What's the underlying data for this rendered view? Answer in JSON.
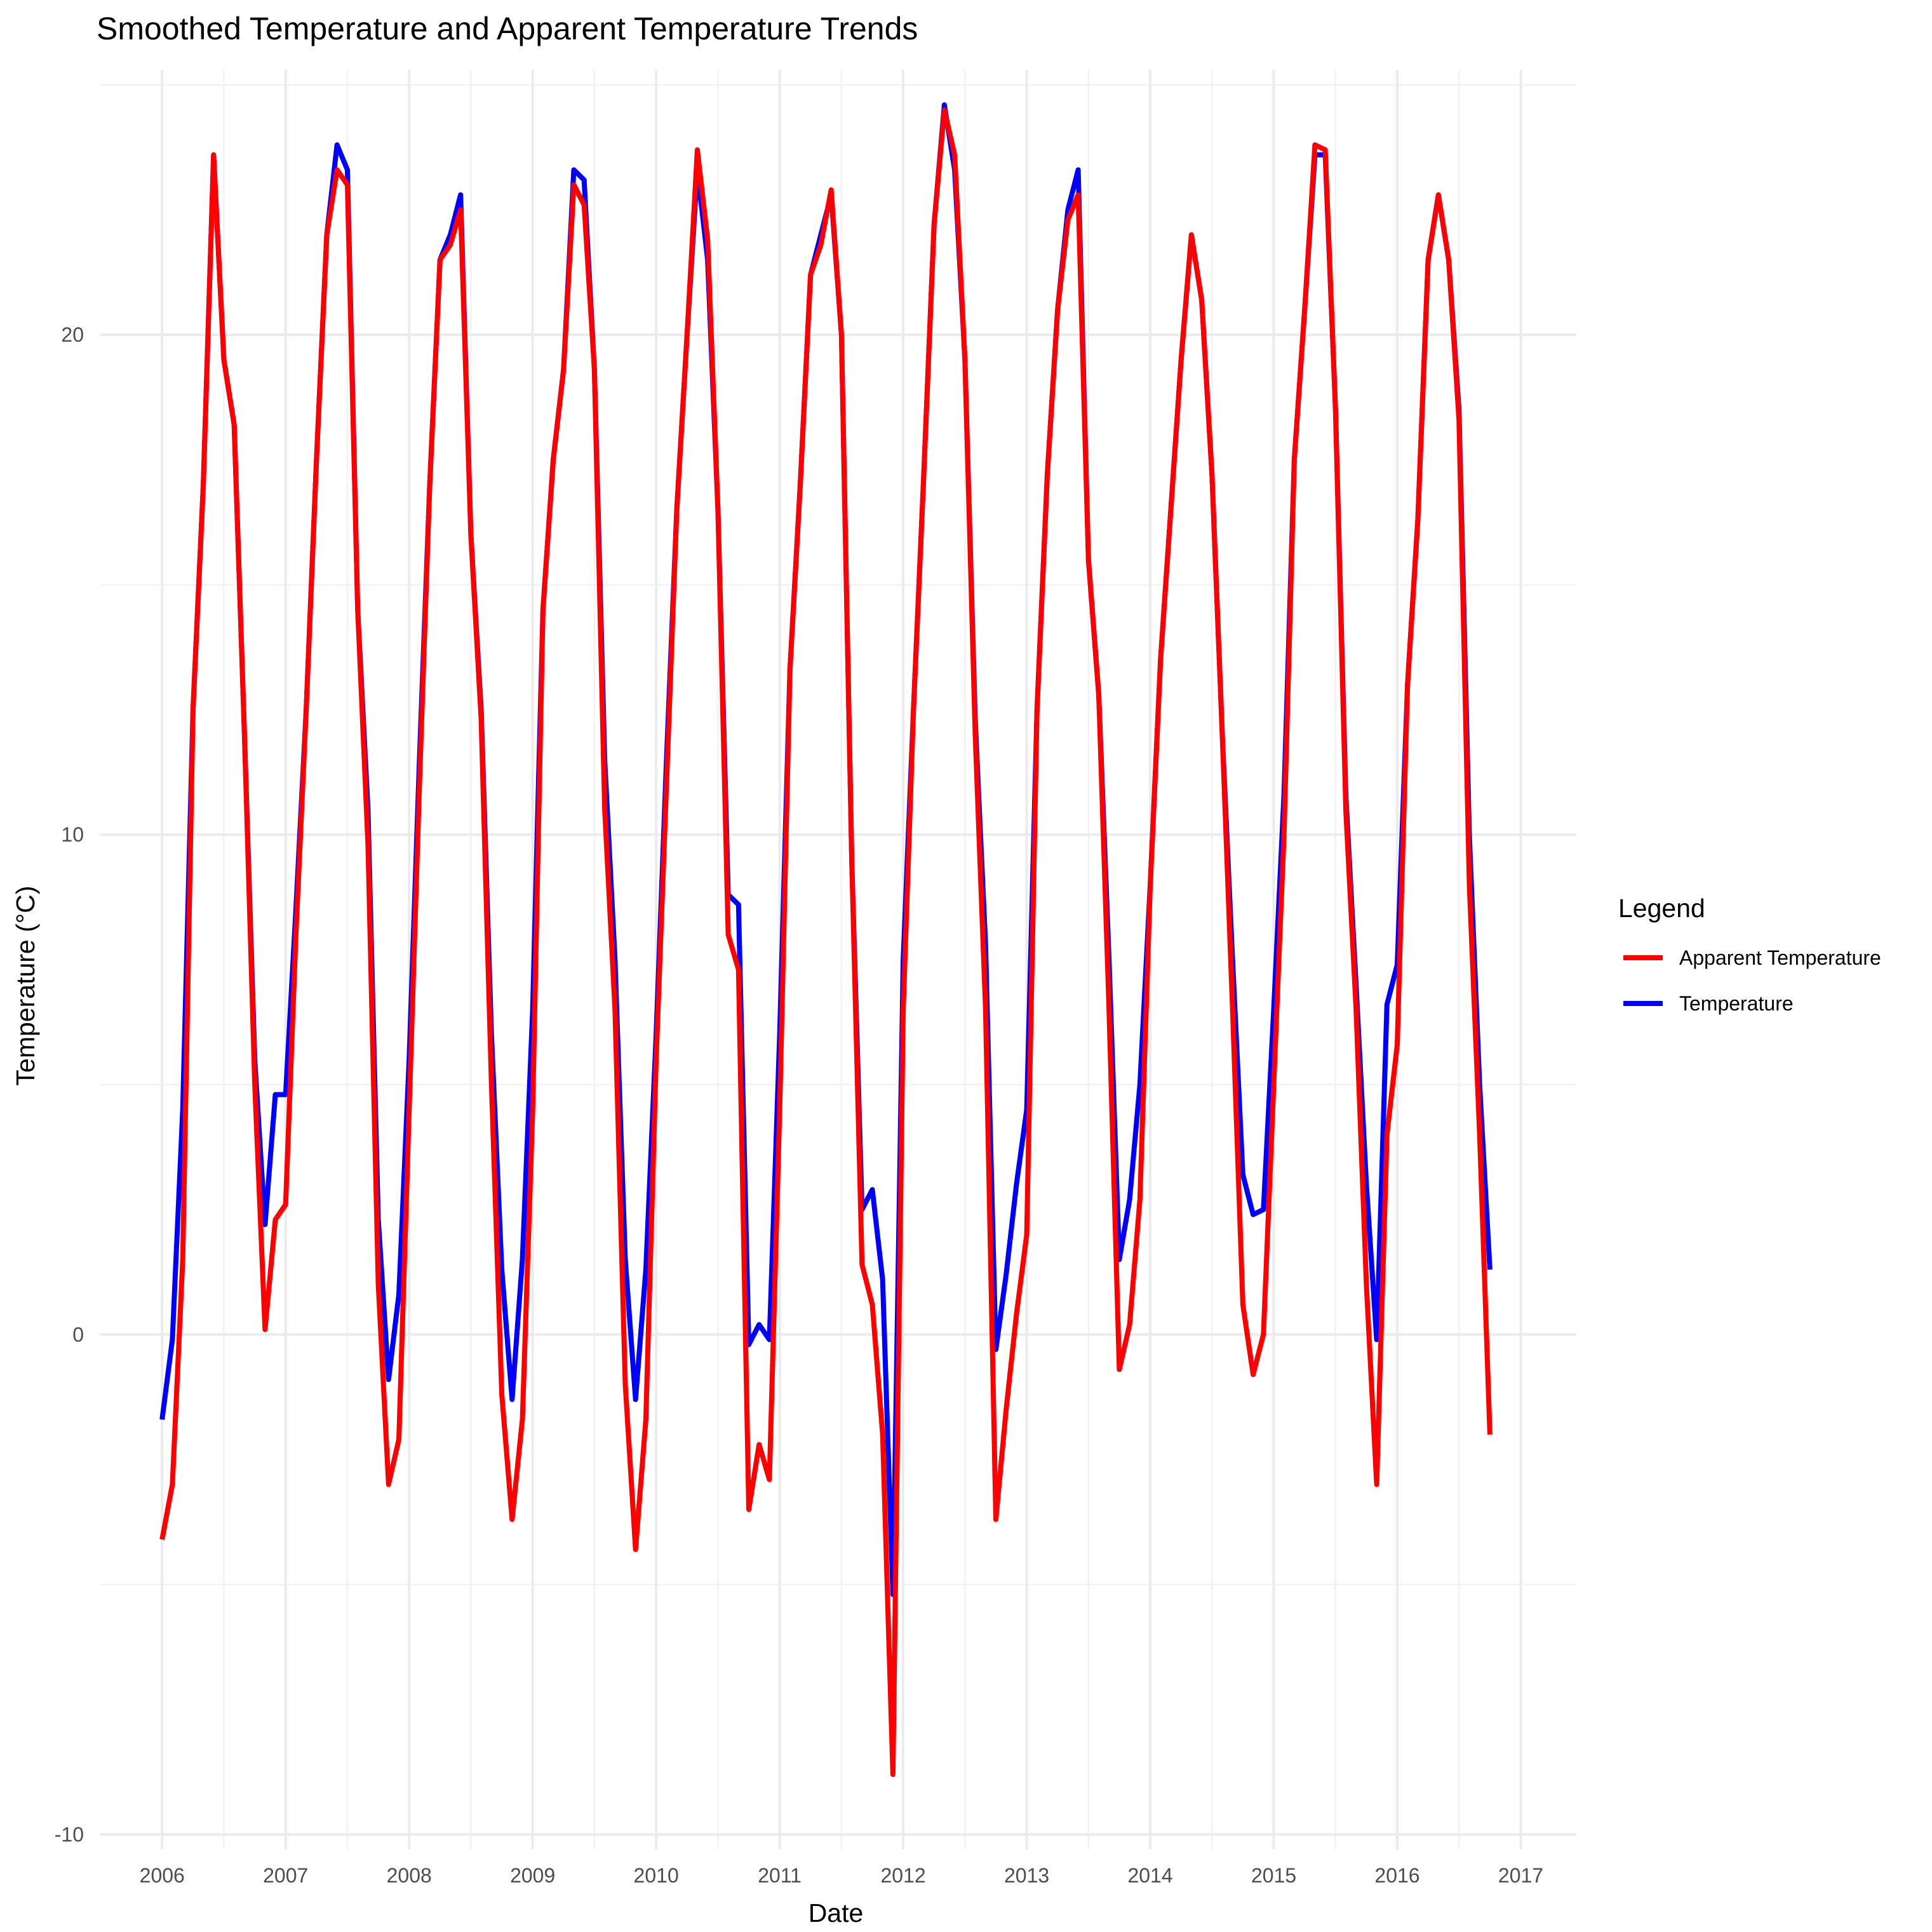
{
  "chart_data": {
    "type": "line",
    "title": "Smoothed Temperature and Apparent Temperature Trends",
    "xlabel": "Date",
    "ylabel": "Temperature (°C)",
    "xlim": [
      2005.5,
      2017.45
    ],
    "ylim": [
      -10.3,
      25.3
    ],
    "x_ticks": [
      2006,
      2007,
      2008,
      2009,
      2010,
      2011,
      2012,
      2013,
      2014,
      2015,
      2016,
      2017
    ],
    "x_tick_labels": [
      "2006",
      "2007",
      "2008",
      "2009",
      "2010",
      "2011",
      "2012",
      "2013",
      "2014",
      "2015",
      "2016",
      "2017"
    ],
    "y_ticks": [
      -10,
      0,
      10,
      20
    ],
    "y_tick_labels": [
      "-10",
      "0",
      "10",
      "20"
    ],
    "grid": true,
    "legend": {
      "title": "Legend",
      "position": "right"
    },
    "series": [
      {
        "name": "Apparent Temperature",
        "color": "#ff0000",
        "values": [
          -4.1,
          -3.0,
          1.5,
          12.5,
          17.0,
          23.6,
          19.5,
          18.2,
          12.0,
          5.0,
          0.1,
          2.3,
          2.6,
          8.0,
          12.5,
          17.5,
          22.0,
          23.3,
          23.0,
          14.5,
          9.8,
          1.0,
          -3.0,
          -2.1,
          4.5,
          11.0,
          17.0,
          21.5,
          21.8,
          22.5,
          16.0,
          12.3,
          5.0,
          -1.2,
          -3.7,
          -1.7,
          4.5,
          14.5,
          17.5,
          19.3,
          23.0,
          22.6,
          19.3,
          10.5,
          6.5,
          -1.0,
          -4.3,
          -1.7,
          5.5,
          11.0,
          16.5,
          20.0,
          23.7,
          21.9,
          16.5,
          8.0,
          7.3,
          -3.5,
          -2.2,
          -2.9,
          4.5,
          13.3,
          17.0,
          21.2,
          21.8,
          22.9,
          20.0,
          9.5,
          1.4,
          0.6,
          -2.0,
          -8.8,
          6.5,
          12.5,
          17.2,
          22.2,
          24.5,
          23.6,
          19.5,
          12.0,
          6.5,
          -3.7,
          -1.5,
          0.4,
          2.0,
          12.5,
          17.2,
          20.5,
          22.3,
          22.8,
          15.5,
          12.8,
          6.5,
          -0.7,
          0.2,
          2.7,
          9.0,
          13.5,
          16.5,
          19.5,
          22.0,
          20.7,
          17.2,
          12.0,
          6.5,
          0.6,
          -0.8,
          0.0,
          5.0,
          10.0,
          17.5,
          20.5,
          23.8,
          23.7,
          18.5,
          10.5,
          6.5,
          1.0,
          -3.0,
          4.0,
          5.8,
          13.0,
          16.3,
          21.5,
          22.8,
          21.5,
          18.3,
          9.0,
          4.0,
          -2.0
        ]
      },
      {
        "name": "Temperature",
        "color": "#0000ff",
        "values": [
          -1.7,
          -0.1,
          4.5,
          12.5,
          17.0,
          23.6,
          19.5,
          18.2,
          12.0,
          5.5,
          2.2,
          4.8,
          4.8,
          8.5,
          12.5,
          17.5,
          22.0,
          23.8,
          23.3,
          14.5,
          10.5,
          2.3,
          -0.9,
          0.8,
          5.5,
          11.5,
          17.0,
          21.5,
          22.0,
          22.8,
          16.0,
          12.5,
          6.0,
          1.3,
          -1.3,
          1.5,
          6.5,
          14.5,
          17.5,
          19.3,
          23.3,
          23.1,
          19.3,
          11.5,
          7.5,
          1.5,
          -1.3,
          1.3,
          6.0,
          11.5,
          16.5,
          20.0,
          23.3,
          21.5,
          16.5,
          8.8,
          8.6,
          -0.2,
          0.2,
          -0.1,
          6.0,
          13.3,
          17.0,
          21.2,
          22.0,
          22.8,
          20.0,
          9.5,
          2.5,
          2.9,
          1.1,
          -5.2,
          7.5,
          12.5,
          17.2,
          22.2,
          24.6,
          23.3,
          19.5,
          12.3,
          7.8,
          -0.3,
          1.2,
          3.0,
          4.5,
          12.5,
          17.2,
          20.5,
          22.5,
          23.3,
          15.5,
          12.8,
          7.5,
          1.5,
          2.7,
          5.0,
          9.0,
          13.5,
          16.5,
          19.5,
          22.0,
          20.7,
          17.2,
          12.0,
          7.5,
          3.2,
          2.4,
          2.5,
          6.5,
          10.8,
          17.5,
          20.5,
          23.6,
          23.6,
          18.5,
          10.8,
          7.0,
          3.0,
          -0.1,
          6.6,
          7.4,
          13.0,
          16.3,
          21.5,
          22.8,
          21.5,
          18.5,
          10.0,
          5.0,
          1.3
        ]
      }
    ]
  }
}
